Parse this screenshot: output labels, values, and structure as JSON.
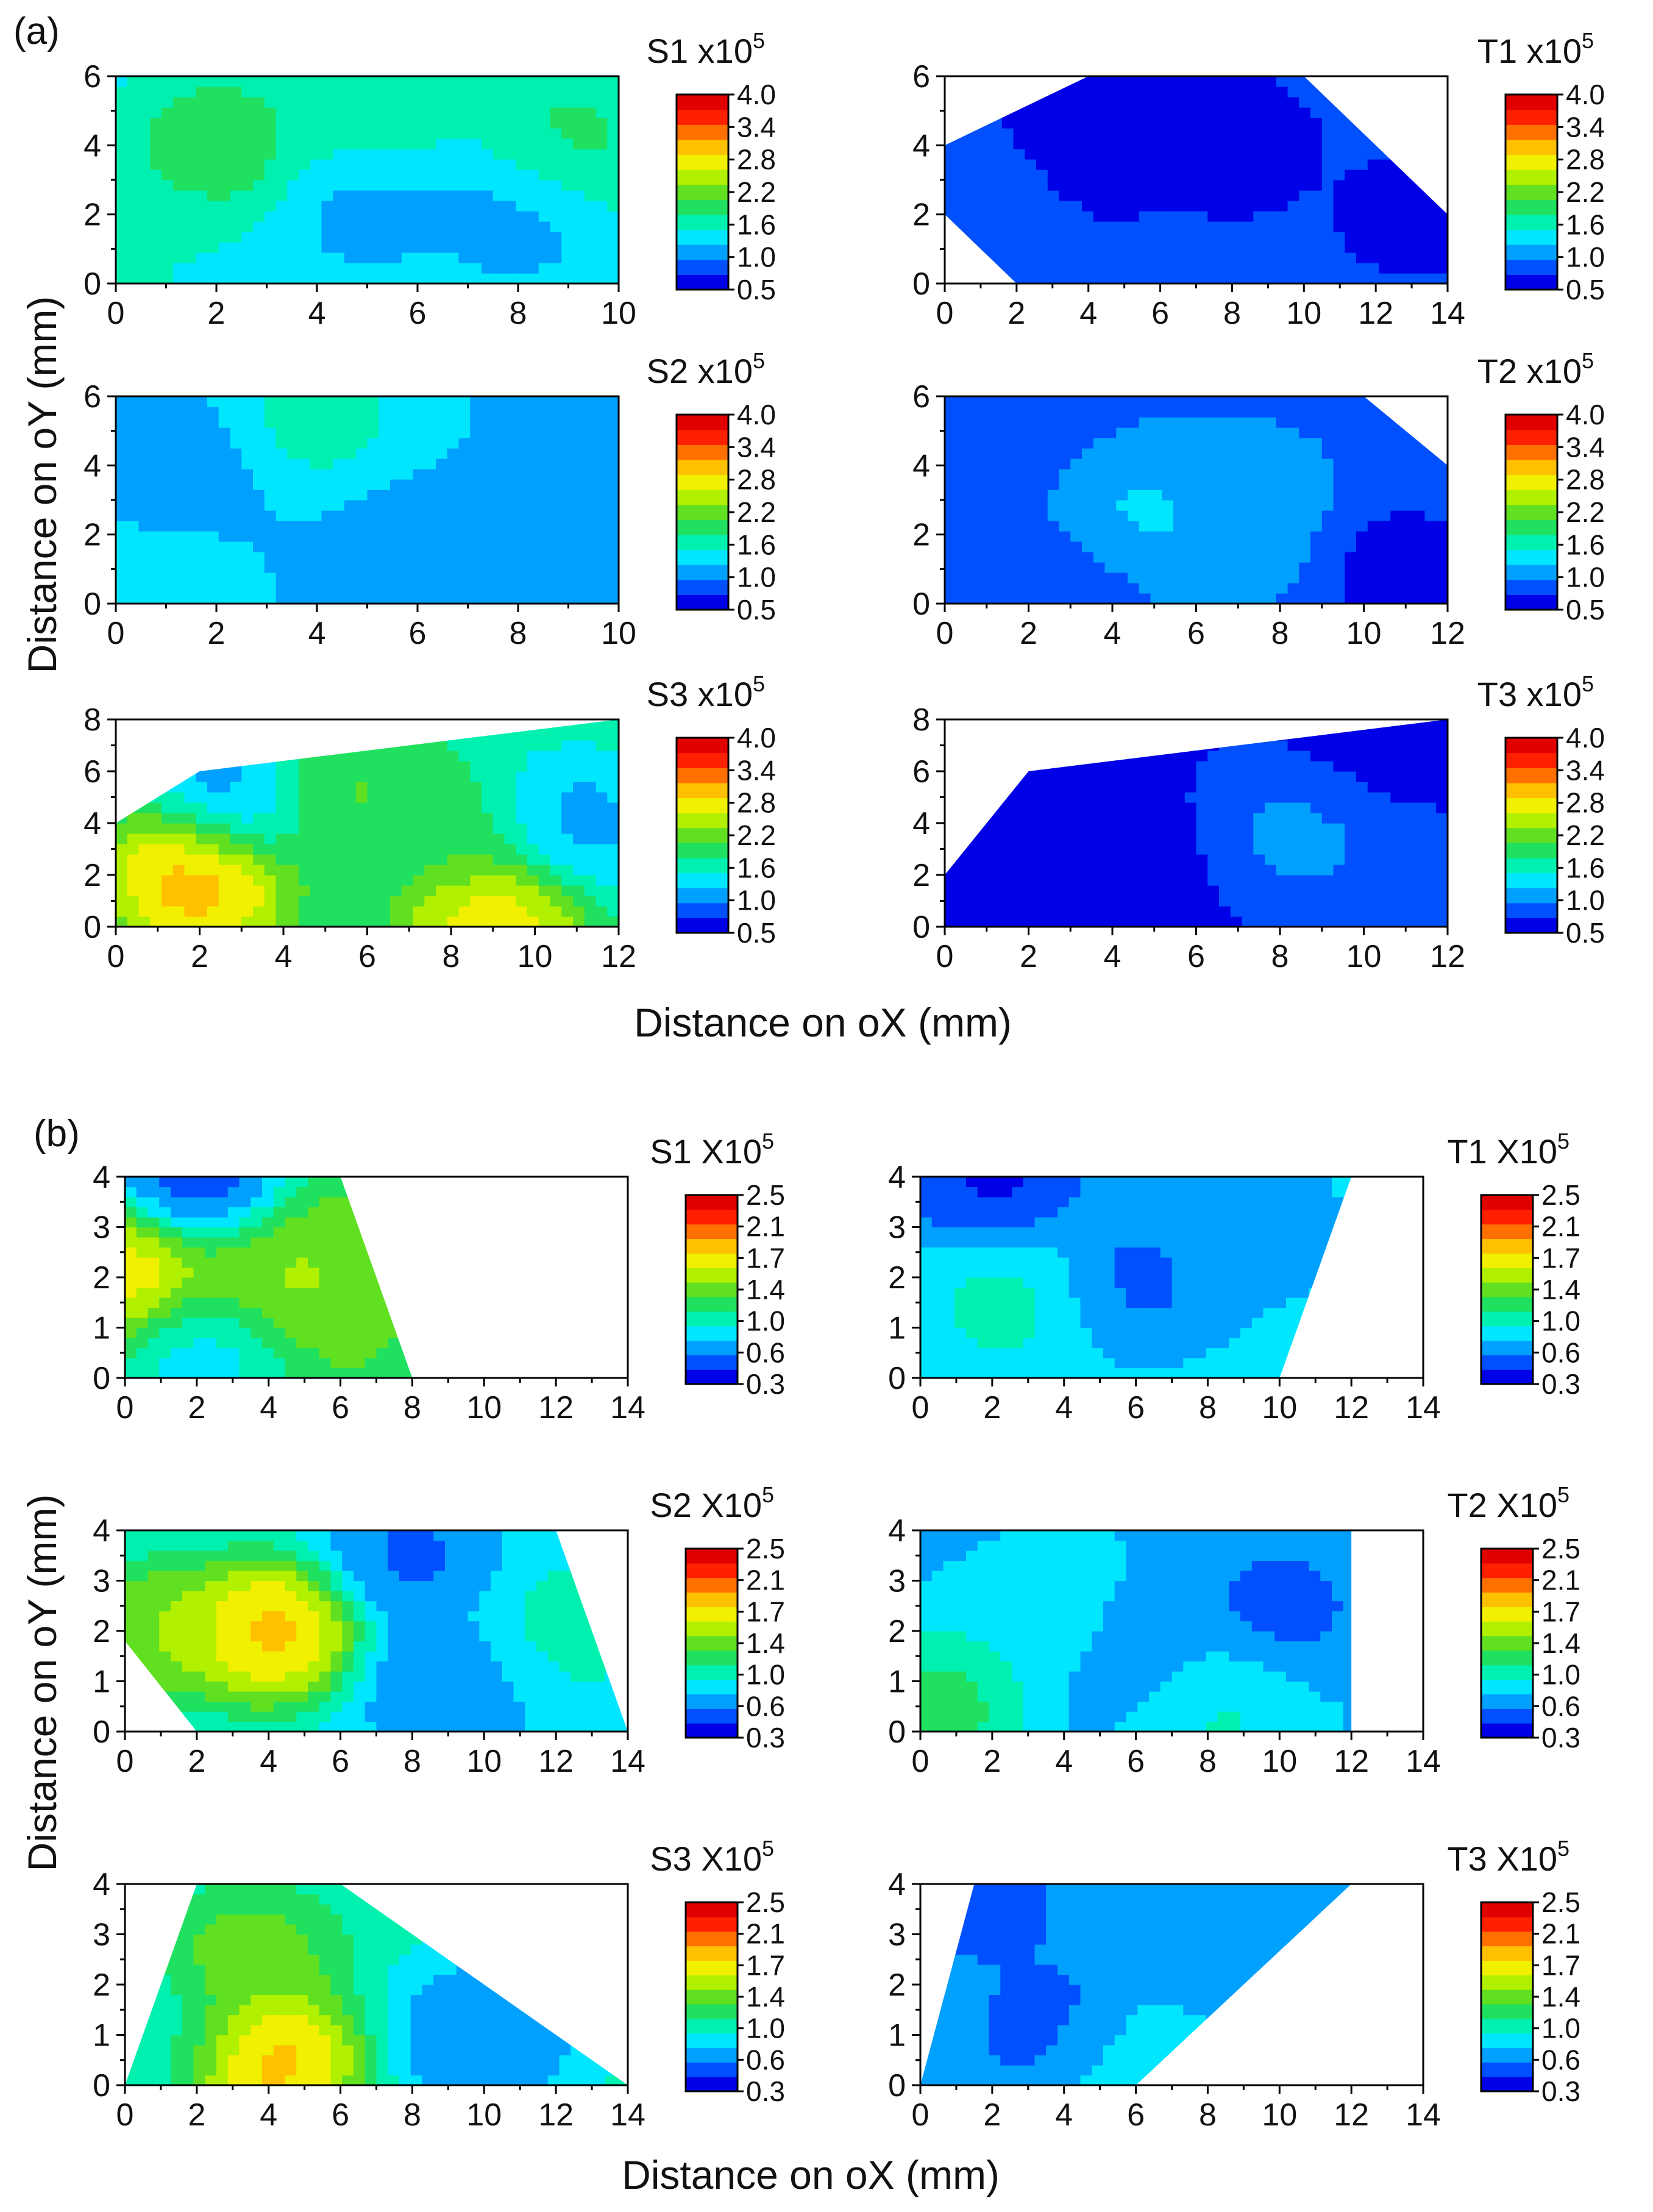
{
  "figure": {
    "part_labels": [
      "(a)",
      "(b)"
    ],
    "axis_titles": {
      "a_y": "Distance on oY (mm)",
      "a_x": "Distance on oX (mm)",
      "b_y": "Distance on oY (mm)",
      "b_x": "Distance on oX (mm)"
    },
    "colors": {
      "scale": [
        "#0000e6",
        "#0050ff",
        "#00a0ff",
        "#00e6ff",
        "#00f0b0",
        "#20e060",
        "#60e020",
        "#b0f000",
        "#f0f000",
        "#ffc000",
        "#ff7000",
        "#ff2000",
        "#e00000"
      ],
      "frame": "#000000",
      "background": "#ffffff"
    }
  },
  "chart_data": [
    {
      "id": "a-S1",
      "type": "heatmap",
      "title": "S1 x10",
      "exponent": "5",
      "xlabel": "Distance on oX (mm)",
      "ylabel": "Distance on oY (mm)",
      "xlim": [
        0,
        10
      ],
      "ylim": [
        0,
        6
      ],
      "xticks": [
        0,
        2,
        4,
        6,
        8,
        10
      ],
      "yticks": [
        0,
        2,
        4,
        6
      ],
      "colorbar": {
        "range": [
          0.5,
          4.0
        ],
        "ticks": [
          "4.0",
          "3.4",
          "2.8",
          "2.2",
          "1.6",
          "1.0",
          "0.5"
        ]
      },
      "domain": [
        [
          0,
          0
        ],
        [
          10,
          0
        ],
        [
          10,
          6
        ],
        [
          0,
          6
        ]
      ],
      "hotspots": [
        {
          "x": 2,
          "y": 4,
          "v": 2.1
        },
        {
          "x": 9,
          "y": 4,
          "v": 2.0
        },
        {
          "x": 5,
          "y": 5.5,
          "v": 1.9
        },
        {
          "x": 5,
          "y": 2,
          "v": 1.2
        },
        {
          "x": 8,
          "y": 2,
          "v": 1.15
        },
        {
          "x": 0.5,
          "y": 0.5,
          "v": 1.6
        }
      ],
      "base": 1.5
    },
    {
      "id": "a-T1",
      "type": "heatmap",
      "title": "T1 x10",
      "exponent": "5",
      "xlabel": "Distance on oX (mm)",
      "ylabel": "Distance on oY (mm)",
      "xlim": [
        0,
        14
      ],
      "ylim": [
        0,
        6
      ],
      "xticks": [
        0,
        2,
        4,
        6,
        8,
        10,
        12,
        14
      ],
      "yticks": [
        0,
        2,
        4,
        6
      ],
      "colorbar": {
        "range": [
          0.5,
          4.0
        ],
        "ticks": [
          "4.0",
          "3.4",
          "2.8",
          "2.2",
          "1.6",
          "1.0",
          "0.5"
        ]
      },
      "domain": [
        [
          0,
          4
        ],
        [
          4,
          6
        ],
        [
          10,
          6
        ],
        [
          14,
          2
        ],
        [
          14,
          0
        ],
        [
          2,
          0
        ],
        [
          0,
          2
        ]
      ],
      "hotspots": [
        {
          "x": 4,
          "y": 4,
          "v": 0.6
        },
        {
          "x": 8,
          "y": 4,
          "v": 0.65
        },
        {
          "x": 13,
          "y": 2,
          "v": 0.7
        },
        {
          "x": 1,
          "y": 2,
          "v": 1.0
        }
      ],
      "base": 0.85
    },
    {
      "id": "a-S2",
      "type": "heatmap",
      "title": "S2 x10",
      "exponent": "5",
      "xlabel": "Distance on oX (mm)",
      "ylabel": "Distance on oY (mm)",
      "xlim": [
        0,
        10
      ],
      "ylim": [
        0,
        6
      ],
      "xticks": [
        0,
        2,
        4,
        6,
        8,
        10
      ],
      "yticks": [
        0,
        2,
        4,
        6
      ],
      "colorbar": {
        "range": [
          0.5,
          4.0
        ],
        "ticks": [
          "4.0",
          "3.4",
          "2.8",
          "2.2",
          "1.6",
          "1.0",
          "0.5"
        ]
      },
      "domain": [
        [
          0,
          0
        ],
        [
          10,
          0
        ],
        [
          10,
          6
        ],
        [
          0,
          6
        ]
      ],
      "hotspots": [
        {
          "x": 4,
          "y": 5.5,
          "v": 1.75
        },
        {
          "x": 0.5,
          "y": 0.5,
          "v": 1.5
        },
        {
          "x": 6,
          "y": 1,
          "v": 1.05
        },
        {
          "x": 10,
          "y": 2,
          "v": 1.0
        },
        {
          "x": 1,
          "y": 4,
          "v": 1.1
        }
      ],
      "base": 1.3
    },
    {
      "id": "a-T2",
      "type": "heatmap",
      "title": "T2 x10",
      "exponent": "5",
      "xlabel": "Distance on oX (mm)",
      "ylabel": "Distance on oY (mm)",
      "xlim": [
        0,
        12
      ],
      "ylim": [
        0,
        6
      ],
      "xticks": [
        0,
        2,
        4,
        6,
        8,
        10,
        12
      ],
      "yticks": [
        0,
        2,
        4,
        6
      ],
      "colorbar": {
        "range": [
          0.5,
          4.0
        ],
        "ticks": [
          "4.0",
          "3.4",
          "2.8",
          "2.2",
          "1.6",
          "1.0",
          "0.5"
        ]
      },
      "domain": [
        [
          0,
          0
        ],
        [
          12,
          0
        ],
        [
          12,
          4
        ],
        [
          10,
          6
        ],
        [
          0,
          6
        ]
      ],
      "hotspots": [
        {
          "x": 4.5,
          "y": 2.2,
          "v": 1.45
        },
        {
          "x": 7,
          "y": 2.5,
          "v": 1.3
        },
        {
          "x": 11,
          "y": 1,
          "v": 0.6
        },
        {
          "x": 1,
          "y": 5,
          "v": 0.75
        },
        {
          "x": 3,
          "y": 0.5,
          "v": 0.7
        }
      ],
      "base": 1.0
    },
    {
      "id": "a-S3",
      "type": "heatmap",
      "title": "S3 x10",
      "exponent": "5",
      "xlabel": "Distance on oX (mm)",
      "ylabel": "Distance on oY (mm)",
      "xlim": [
        0,
        12
      ],
      "ylim": [
        0,
        8
      ],
      "xticks": [
        0,
        2,
        4,
        6,
        8,
        10,
        12
      ],
      "yticks": [
        0,
        2,
        4,
        6,
        8
      ],
      "colorbar": {
        "range": [
          0.5,
          4.0
        ],
        "ticks": [
          "4.0",
          "3.4",
          "2.8",
          "2.2",
          "1.6",
          "1.0",
          "0.5"
        ]
      },
      "domain": [
        [
          0,
          0
        ],
        [
          12,
          0
        ],
        [
          12,
          8
        ],
        [
          2,
          6
        ],
        [
          0,
          4
        ]
      ],
      "hotspots": [
        {
          "x": 2,
          "y": 2,
          "v": 3.4
        },
        {
          "x": 9,
          "y": 0.3,
          "v": 3.1
        },
        {
          "x": 5,
          "y": 5,
          "v": 2.3
        },
        {
          "x": 3,
          "y": 5,
          "v": 0.9
        },
        {
          "x": 11,
          "y": 4,
          "v": 1.1
        },
        {
          "x": 8,
          "y": 3.5,
          "v": 2.0
        }
      ],
      "base": 1.8
    },
    {
      "id": "a-T3",
      "type": "heatmap",
      "title": "T3 x10",
      "exponent": "5",
      "xlabel": "Distance on oX (mm)",
      "ylabel": "Distance on oY (mm)",
      "xlim": [
        0,
        12
      ],
      "ylim": [
        0,
        8
      ],
      "xticks": [
        0,
        2,
        4,
        6,
        8,
        10,
        12
      ],
      "yticks": [
        0,
        2,
        4,
        6,
        8
      ],
      "colorbar": {
        "range": [
          0.5,
          4.0
        ],
        "ticks": [
          "4.0",
          "3.4",
          "2.8",
          "2.2",
          "1.6",
          "1.0",
          "0.5"
        ]
      },
      "domain": [
        [
          0,
          0
        ],
        [
          12,
          0
        ],
        [
          12,
          8
        ],
        [
          2,
          6
        ],
        [
          0,
          2
        ]
      ],
      "hotspots": [
        {
          "x": 9,
          "y": 4,
          "v": 1.3
        },
        {
          "x": 3.5,
          "y": 2,
          "v": 0.55
        },
        {
          "x": 10,
          "y": 6,
          "v": 0.55
        },
        {
          "x": 11,
          "y": 2,
          "v": 0.9
        }
      ],
      "base": 0.75
    },
    {
      "id": "b-S1",
      "type": "heatmap",
      "title": "S1 X10",
      "exponent": "5",
      "xlabel": "Distance on oX (mm)",
      "ylabel": "Distance on oY (mm)",
      "xlim": [
        0,
        14
      ],
      "ylim": [
        0,
        4
      ],
      "xticks": [
        0,
        2,
        4,
        6,
        8,
        10,
        12,
        14
      ],
      "yticks": [
        0,
        1,
        2,
        3,
        4
      ],
      "colorbar": {
        "range": [
          0.3,
          2.5
        ],
        "ticks": [
          "2.5",
          "2.1",
          "1.7",
          "1.4",
          "1.0",
          "0.6",
          "0.3"
        ]
      },
      "domain": [
        [
          0,
          0
        ],
        [
          8,
          0
        ],
        [
          6,
          4
        ],
        [
          0,
          4
        ]
      ],
      "hotspots": [
        {
          "x": 0,
          "y": 2,
          "v": 1.9
        },
        {
          "x": 4.5,
          "y": 2,
          "v": 1.55
        },
        {
          "x": 2,
          "y": 4,
          "v": 0.35
        },
        {
          "x": 2,
          "y": 0.5,
          "v": 0.8
        }
      ],
      "base": 1.3
    },
    {
      "id": "b-T1",
      "type": "heatmap",
      "title": "T1 X10",
      "exponent": "5",
      "xlabel": "Distance on oX (mm)",
      "ylabel": "Distance on oY (mm)",
      "xlim": [
        0,
        14
      ],
      "ylim": [
        0,
        4
      ],
      "xticks": [
        0,
        2,
        4,
        6,
        8,
        10,
        12,
        14
      ],
      "yticks": [
        0,
        1,
        2,
        3,
        4
      ],
      "colorbar": {
        "range": [
          0.3,
          2.5
        ],
        "ticks": [
          "2.5",
          "2.1",
          "1.7",
          "1.4",
          "1.0",
          "0.6",
          "0.3"
        ]
      },
      "domain": [
        [
          0,
          0
        ],
        [
          10,
          0
        ],
        [
          12,
          4
        ],
        [
          0,
          4
        ]
      ],
      "hotspots": [
        {
          "x": 2,
          "y": 4,
          "v": 0.35
        },
        {
          "x": 6,
          "y": 2,
          "v": 0.55
        },
        {
          "x": 2.5,
          "y": 1.5,
          "v": 1.05
        },
        {
          "x": 9,
          "y": 3,
          "v": 0.7
        }
      ],
      "base": 0.85
    },
    {
      "id": "b-S2",
      "type": "heatmap",
      "title": "S2 X10",
      "exponent": "5",
      "xlabel": "Distance on oX (mm)",
      "ylabel": "Distance on oY (mm)",
      "xlim": [
        0,
        14
      ],
      "ylim": [
        0,
        4
      ],
      "xticks": [
        0,
        2,
        4,
        6,
        8,
        10,
        12,
        14
      ],
      "yticks": [
        0,
        1,
        2,
        3,
        4
      ],
      "colorbar": {
        "range": [
          0.3,
          2.5
        ],
        "ticks": [
          "2.5",
          "2.1",
          "1.7",
          "1.4",
          "1.0",
          "0.6",
          "0.3"
        ]
      },
      "domain": [
        [
          0,
          0
        ],
        [
          0,
          4
        ],
        [
          12,
          4
        ],
        [
          14,
          0
        ],
        [
          2,
          0
        ],
        [
          0,
          1.8
        ]
      ],
      "hotspots": [
        {
          "x": 4,
          "y": 2,
          "v": 2.1
        },
        {
          "x": 1,
          "y": 2,
          "v": 1.6
        },
        {
          "x": 12,
          "y": 2,
          "v": 1.05
        },
        {
          "x": 9,
          "y": 1,
          "v": 0.6
        },
        {
          "x": 8,
          "y": 3.5,
          "v": 0.55
        }
      ],
      "base": 0.9
    },
    {
      "id": "b-T2",
      "type": "heatmap",
      "title": "T2 X10",
      "exponent": "5",
      "xlabel": "Distance on oX (mm)",
      "ylabel": "Distance on oY (mm)",
      "xlim": [
        0,
        14
      ],
      "ylim": [
        0,
        4
      ],
      "xticks": [
        0,
        2,
        4,
        6,
        8,
        10,
        12,
        14
      ],
      "yticks": [
        0,
        1,
        2,
        3,
        4
      ],
      "colorbar": {
        "range": [
          0.3,
          2.5
        ],
        "ticks": [
          "2.5",
          "2.1",
          "1.7",
          "1.4",
          "1.0",
          "0.6",
          "0.3"
        ]
      },
      "domain": [
        [
          0,
          0
        ],
        [
          12,
          0
        ],
        [
          12,
          4
        ],
        [
          0,
          4
        ]
      ],
      "hotspots": [
        {
          "x": 0.5,
          "y": 0.5,
          "v": 1.3
        },
        {
          "x": 8,
          "y": 0.5,
          "v": 1.05
        },
        {
          "x": 4,
          "y": 2,
          "v": 0.95
        },
        {
          "x": 10,
          "y": 2.5,
          "v": 0.55
        },
        {
          "x": 6,
          "y": 1.5,
          "v": 0.6
        }
      ],
      "base": 0.8
    },
    {
      "id": "b-S3",
      "type": "heatmap",
      "title": "S3 X10",
      "exponent": "5",
      "xlabel": "Distance on oX (mm)",
      "ylabel": "Distance on oY (mm)",
      "xlim": [
        0,
        14
      ],
      "ylim": [
        0,
        4
      ],
      "xticks": [
        0,
        2,
        4,
        6,
        8,
        10,
        12,
        14
      ],
      "yticks": [
        0,
        1,
        2,
        3,
        4
      ],
      "colorbar": {
        "range": [
          0.3,
          2.5
        ],
        "ticks": [
          "2.5",
          "2.1",
          "1.7",
          "1.4",
          "1.0",
          "0.6",
          "0.3"
        ]
      },
      "domain": [
        [
          0,
          0
        ],
        [
          14,
          0
        ],
        [
          6,
          4
        ],
        [
          2,
          4
        ]
      ],
      "hotspots": [
        {
          "x": 4,
          "y": 0.5,
          "v": 2.1
        },
        {
          "x": 3.5,
          "y": 2.5,
          "v": 1.5
        },
        {
          "x": 10,
          "y": 1,
          "v": 0.55
        },
        {
          "x": 1,
          "y": 1,
          "v": 1.05
        }
      ],
      "base": 1.0
    },
    {
      "id": "b-T3",
      "type": "heatmap",
      "title": "T3 X10",
      "exponent": "5",
      "xlabel": "Distance on oX (mm)",
      "ylabel": "Distance on oY (mm)",
      "xlim": [
        0,
        14
      ],
      "ylim": [
        0,
        4
      ],
      "xticks": [
        0,
        2,
        4,
        6,
        8,
        10,
        12,
        14
      ],
      "yticks": [
        0,
        1,
        2,
        3,
        4
      ],
      "colorbar": {
        "range": [
          0.3,
          2.5
        ],
        "ticks": [
          "2.5",
          "2.1",
          "1.7",
          "1.4",
          "1.0",
          "0.6",
          "0.3"
        ]
      },
      "domain": [
        [
          0,
          0
        ],
        [
          6,
          0
        ],
        [
          12,
          4
        ],
        [
          1.5,
          4
        ]
      ],
      "hotspots": [
        {
          "x": 4,
          "y": 1,
          "v": 0.45
        },
        {
          "x": 2,
          "y": 3.5,
          "v": 0.55
        },
        {
          "x": 5.5,
          "y": 0.5,
          "v": 1.05
        },
        {
          "x": 8,
          "y": 3,
          "v": 0.6
        }
      ],
      "base": 0.8
    }
  ]
}
